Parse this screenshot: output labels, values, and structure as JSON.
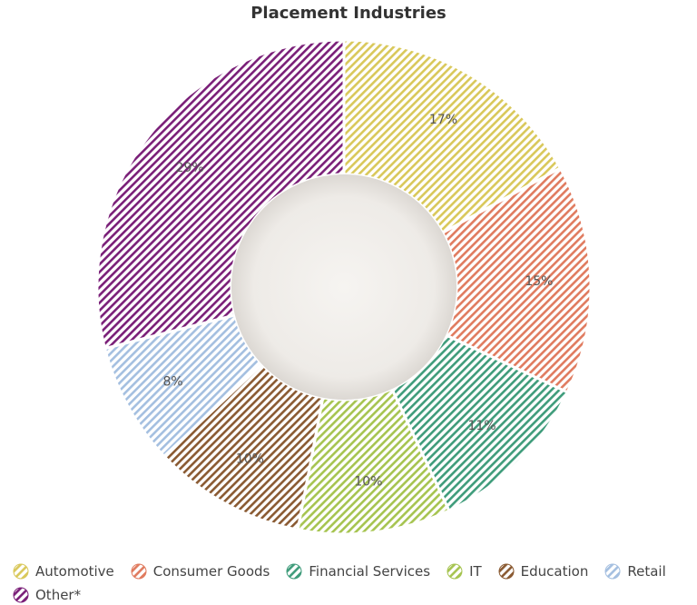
{
  "chart_data": {
    "type": "pie",
    "donut": true,
    "title": "Placement Industries",
    "categories": [
      "Automotive",
      "Consumer Goods",
      "Financial Services",
      "IT",
      "Education",
      "Retail",
      "Other*"
    ],
    "values": [
      17,
      15,
      11,
      10,
      10,
      8,
      29
    ],
    "labels": [
      "17%",
      "15%",
      "11%",
      "10%",
      "10%",
      "8%",
      "29%"
    ],
    "colors": [
      "#d9c85a",
      "#e07b5f",
      "#3f9c7b",
      "#a6c450",
      "#8a5a32",
      "#a4bfe0",
      "#7a1f78"
    ],
    "legend_position": "bottom"
  }
}
